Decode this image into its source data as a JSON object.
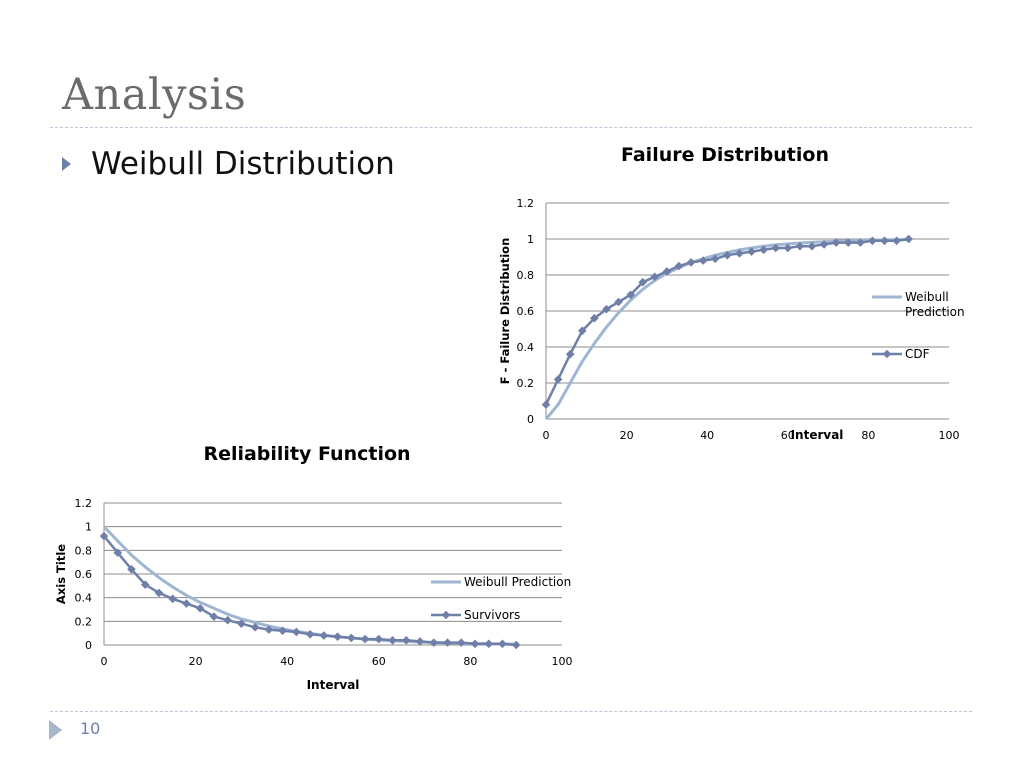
{
  "slide": {
    "title": "Analysis",
    "bullet": "Weibull Distribution",
    "page_number": "10"
  },
  "colors": {
    "title_text": "#6b6b6b",
    "weibull_line": "#9fb6d2",
    "data_line": "#6f7fa8",
    "grid": "#8c8c8c",
    "rule": "#b9c6d6"
  },
  "chart_data": [
    {
      "type": "line",
      "title": "Failure Distribution",
      "xlabel": "Interval",
      "ylabel": "F - Failure Distribution",
      "xlim": [
        0,
        100
      ],
      "ylim": [
        0,
        1.2
      ],
      "xticks": [
        "0",
        "20",
        "40",
        "60",
        "80",
        "100"
      ],
      "yticks": [
        "0",
        "0.2",
        "0.4",
        "0.6",
        "0.8",
        "1",
        "1.2"
      ],
      "grid": "horizontal",
      "legend_position": "right",
      "series": [
        {
          "name": "Weibull Prediction",
          "marker": "none",
          "x": [
            0,
            3,
            6,
            9,
            12,
            15,
            18,
            21,
            24,
            27,
            30,
            33,
            36,
            39,
            42,
            45,
            48,
            51,
            54,
            57,
            60,
            63,
            66,
            69,
            72,
            75,
            78,
            81,
            84,
            87,
            90
          ],
          "values": [
            0.0,
            0.08,
            0.2,
            0.32,
            0.42,
            0.51,
            0.59,
            0.66,
            0.72,
            0.77,
            0.81,
            0.84,
            0.87,
            0.89,
            0.91,
            0.925,
            0.94,
            0.95,
            0.96,
            0.967,
            0.973,
            0.978,
            0.982,
            0.985,
            0.988,
            0.99,
            0.992,
            0.993,
            0.995,
            0.996,
            0.997
          ]
        },
        {
          "name": "CDF",
          "marker": "diamond",
          "x": [
            0,
            3,
            6,
            9,
            12,
            15,
            18,
            21,
            24,
            27,
            30,
            33,
            36,
            39,
            42,
            45,
            48,
            51,
            54,
            57,
            60,
            63,
            66,
            69,
            72,
            75,
            78,
            81,
            84,
            87,
            90
          ],
          "values": [
            0.08,
            0.22,
            0.36,
            0.49,
            0.56,
            0.61,
            0.65,
            0.69,
            0.76,
            0.79,
            0.82,
            0.85,
            0.87,
            0.88,
            0.89,
            0.91,
            0.92,
            0.93,
            0.94,
            0.95,
            0.95,
            0.96,
            0.96,
            0.97,
            0.98,
            0.98,
            0.98,
            0.99,
            0.99,
            0.99,
            1.0
          ]
        }
      ]
    },
    {
      "type": "line",
      "title": "Reliability Function",
      "xlabel": "Interval",
      "ylabel": "Axis Title",
      "xlim": [
        0,
        100
      ],
      "ylim": [
        0,
        1.2
      ],
      "xticks": [
        "0",
        "20",
        "40",
        "60",
        "80",
        "100"
      ],
      "yticks": [
        "0",
        "0.2",
        "0.4",
        "0.6",
        "0.8",
        "1",
        "1.2"
      ],
      "grid": "horizontal",
      "legend_position": "right",
      "series": [
        {
          "name": "Weibull Prediction",
          "marker": "none",
          "x": [
            0,
            3,
            6,
            9,
            12,
            15,
            18,
            21,
            24,
            27,
            30,
            33,
            36,
            39,
            42,
            45,
            48,
            51,
            54,
            57,
            60,
            63,
            66,
            69,
            72,
            75,
            78,
            81,
            84,
            87,
            90
          ],
          "values": [
            1.0,
            0.88,
            0.76,
            0.66,
            0.57,
            0.49,
            0.42,
            0.36,
            0.31,
            0.26,
            0.22,
            0.19,
            0.16,
            0.135,
            0.115,
            0.098,
            0.083,
            0.07,
            0.06,
            0.05,
            0.042,
            0.035,
            0.03,
            0.025,
            0.021,
            0.018,
            0.015,
            0.012,
            0.01,
            0.008,
            0.007
          ]
        },
        {
          "name": "Survivors",
          "marker": "diamond",
          "x": [
            0,
            3,
            6,
            9,
            12,
            15,
            18,
            21,
            24,
            27,
            30,
            33,
            36,
            39,
            42,
            45,
            48,
            51,
            54,
            57,
            60,
            63,
            66,
            69,
            72,
            75,
            78,
            81,
            84,
            87,
            90
          ],
          "values": [
            0.92,
            0.78,
            0.64,
            0.51,
            0.44,
            0.39,
            0.35,
            0.31,
            0.24,
            0.21,
            0.18,
            0.15,
            0.13,
            0.12,
            0.11,
            0.09,
            0.08,
            0.07,
            0.06,
            0.05,
            0.05,
            0.04,
            0.04,
            0.03,
            0.02,
            0.02,
            0.02,
            0.01,
            0.01,
            0.01,
            0.0
          ]
        }
      ]
    }
  ]
}
